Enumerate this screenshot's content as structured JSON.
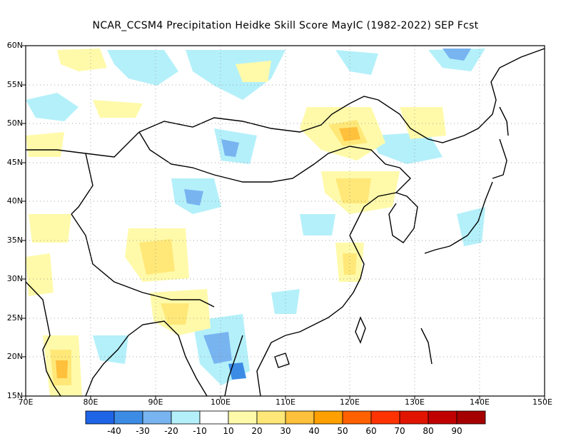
{
  "title": "NCAR_CCSM4  Precipitation Heidke Skill Score MayIC (1982-2022) SEP Fcst",
  "lat_labels": [
    "60N",
    "55N",
    "50N",
    "45N",
    "40N",
    "35N",
    "30N",
    "25N",
    "20N",
    "15N"
  ],
  "lon_labels": [
    "70E",
    "80E",
    "90E",
    "100E",
    "110E",
    "120E",
    "130E",
    "140E",
    "150E"
  ],
  "colorbar": {
    "labels": [
      "-40",
      "-30",
      "-20",
      "-10",
      "10",
      "20",
      "30",
      "40",
      "50",
      "60",
      "70",
      "80",
      "90"
    ],
    "colors": [
      "#1e64e6",
      "#3c8ce6",
      "#78b4f0",
      "#b4f0fa",
      "#ffffff",
      "#fffaaa",
      "#ffe878",
      "#ffc03c",
      "#ffa000",
      "#ff6000",
      "#ff3200",
      "#e11400",
      "#c00000",
      "#a50000"
    ]
  },
  "domain": {
    "lon_range": [
      70,
      150
    ],
    "lat_range": [
      15,
      60
    ]
  }
}
